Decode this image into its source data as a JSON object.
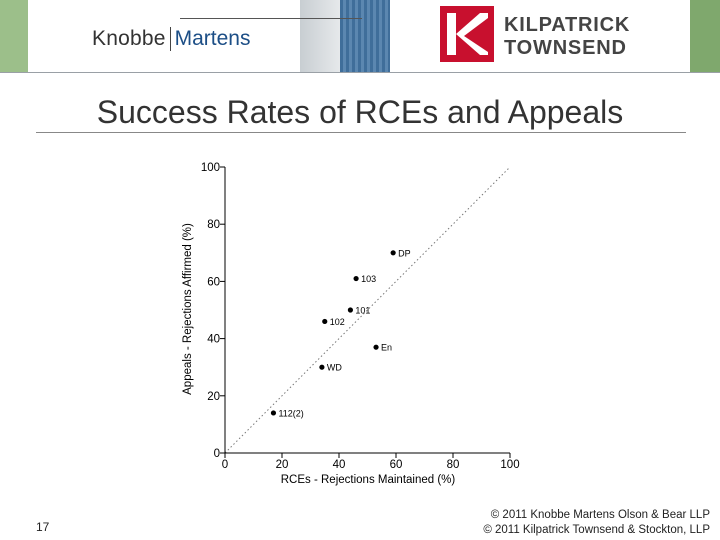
{
  "header": {
    "left_logo": {
      "word1": "Knobbe",
      "word2": "Martens"
    },
    "right_logo": {
      "line1": "KILPATRICK",
      "line2": "TOWNSEND"
    },
    "colors": {
      "knobbe_gray": "#333333",
      "martens_blue": "#1c4e86",
      "kt_red": "#c8102e",
      "kt_gray": "#444444"
    }
  },
  "slide": {
    "title": "Success Rates of RCEs and Appeals",
    "page_number": "17",
    "copyright_line1": "© 2011 Knobbe Martens Olson & Bear LLP",
    "copyright_line2": "© 2011 Kilpatrick Townsend & Stockton, LLP"
  },
  "chart_data": {
    "type": "scatter",
    "title": "",
    "xlabel": "RCEs - Rejections Maintained (%)",
    "ylabel": "Appeals - Rejections Affirmed (%)",
    "xlim": [
      0,
      100
    ],
    "ylim": [
      0,
      100
    ],
    "xticks": [
      0,
      20,
      40,
      60,
      80,
      100
    ],
    "yticks": [
      0,
      20,
      40,
      60,
      80,
      100
    ],
    "reference_line": {
      "style": "dotted",
      "from": [
        0,
        0
      ],
      "to": [
        100,
        100
      ]
    },
    "points": [
      {
        "label": "DP",
        "x": 59,
        "y": 70
      },
      {
        "label": "103",
        "x": 46,
        "y": 61
      },
      {
        "label": "101",
        "x": 44,
        "y": 50
      },
      {
        "label": "102",
        "x": 35,
        "y": 46
      },
      {
        "label": "En",
        "x": 53,
        "y": 37
      },
      {
        "label": "WD",
        "x": 34,
        "y": 30
      },
      {
        "label": "112(2)",
        "x": 17,
        "y": 14
      }
    ],
    "colors": {
      "point": "#000000",
      "axis": "#000000",
      "reference": "#777777"
    }
  }
}
